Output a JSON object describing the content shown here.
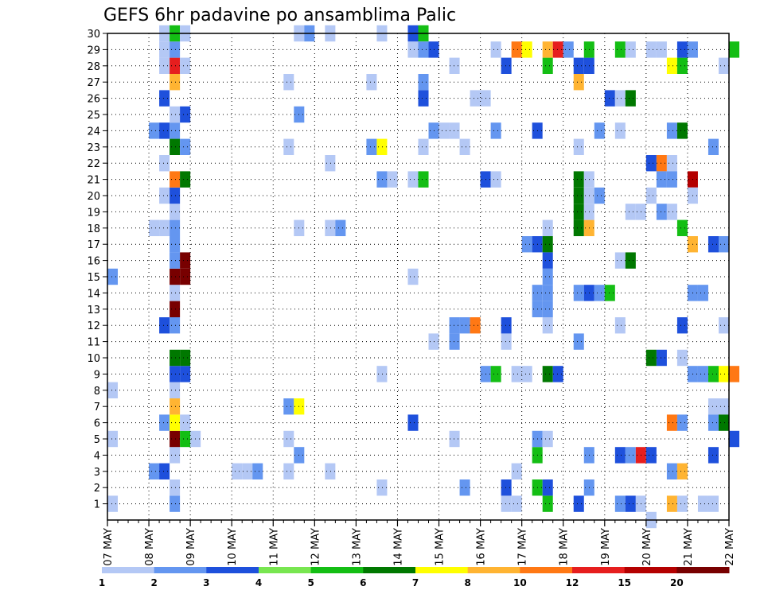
{
  "chart_data": {
    "type": "heatmap",
    "title": "GEFS 6hr padavine po ansamblima Palic",
    "xlabel": "",
    "ylabel": "",
    "x_ticks": [
      "07 MAY",
      "08 MAY",
      "09 MAY",
      "10 MAY",
      "11 MAY",
      "12 MAY",
      "13 MAY",
      "14 MAY",
      "15 MAY",
      "16 MAY",
      "17 MAY",
      "18 MAY",
      "19 MAY",
      "20 MAY",
      "21 MAY",
      "22 MAY"
    ],
    "xlim": [
      "07 MAY",
      "22 MAY"
    ],
    "time_step_hours": 6,
    "y_ticks": [
      1,
      2,
      3,
      4,
      5,
      6,
      7,
      8,
      9,
      10,
      11,
      12,
      13,
      14,
      15,
      16,
      17,
      18,
      19,
      20,
      21,
      22,
      23,
      24,
      25,
      26,
      27,
      28,
      29,
      30
    ],
    "ylim": [
      0,
      30
    ],
    "grid": true,
    "legend": {
      "placement": "bottom",
      "labels": [
        "1",
        "2",
        "3",
        "4",
        "5",
        "6",
        "7",
        "8",
        "10",
        "12",
        "15",
        "20"
      ],
      "colors": [
        "#b4c8f5",
        "#6496f0",
        "#1e50dc",
        "#78e650",
        "#14be14",
        "#007800",
        "#ffff00",
        "#ffb432",
        "#ff7814",
        "#e61e1e",
        "#b40000",
        "#780000"
      ]
    },
    "points": [
      {
        "x": "07 MAY 00",
        "y": 1,
        "v": 1
      },
      {
        "x": "07 MAY 00",
        "y": 5,
        "v": 1
      },
      {
        "x": "07 MAY 00",
        "y": 15,
        "v": 2
      },
      {
        "x": "07 MAY 00",
        "y": 8,
        "v": 1
      },
      {
        "x": "08 MAY 00",
        "y": 3,
        "v": 2
      },
      {
        "x": "08 MAY 06",
        "y": 3,
        "v": 3
      },
      {
        "x": "08 MAY 00",
        "y": 18,
        "v": 1
      },
      {
        "x": "08 MAY 06",
        "y": 18,
        "v": 1
      },
      {
        "x": "08 MAY 00",
        "y": 24,
        "v": 2
      },
      {
        "x": "08 MAY 06",
        "y": 24,
        "v": 3
      },
      {
        "x": "08 MAY 12",
        "y": 24,
        "v": 2
      },
      {
        "x": "08 MAY 06",
        "y": 26,
        "v": 3
      },
      {
        "x": "08 MAY 06",
        "y": 12,
        "v": 3
      },
      {
        "x": "08 MAY 06",
        "y": 6,
        "v": 2
      },
      {
        "x": "08 MAY 06",
        "y": 20,
        "v": 1
      },
      {
        "x": "08 MAY 06",
        "y": 22,
        "v": 1
      },
      {
        "x": "08 MAY 06",
        "y": 28,
        "v": 1
      },
      {
        "x": "08 MAY 06",
        "y": 29,
        "v": 1
      },
      {
        "x": "08 MAY 06",
        "y": 30,
        "v": 1
      },
      {
        "x": "08 MAY 12",
        "y": 1,
        "v": 2
      },
      {
        "x": "08 MAY 12",
        "y": 2,
        "v": 1
      },
      {
        "x": "08 MAY 12",
        "y": 4,
        "v": 1
      },
      {
        "x": "08 MAY 12",
        "y": 5,
        "v": 20
      },
      {
        "x": "08 MAY 12",
        "y": 6,
        "v": 7
      },
      {
        "x": "08 MAY 12",
        "y": 7,
        "v": 8
      },
      {
        "x": "08 MAY 12",
        "y": 8,
        "v": 1
      },
      {
        "x": "08 MAY 12",
        "y": 9,
        "v": 3
      },
      {
        "x": "08 MAY 12",
        "y": 10,
        "v": 6
      },
      {
        "x": "08 MAY 12",
        "y": 12,
        "v": 2
      },
      {
        "x": "08 MAY 12",
        "y": 13,
        "v": 20
      },
      {
        "x": "08 MAY 12",
        "y": 14,
        "v": 1
      },
      {
        "x": "08 MAY 12",
        "y": 15,
        "v": 20
      },
      {
        "x": "08 MAY 12",
        "y": 16,
        "v": 2
      },
      {
        "x": "08 MAY 12",
        "y": 17,
        "v": 2
      },
      {
        "x": "08 MAY 12",
        "y": 18,
        "v": 2
      },
      {
        "x": "08 MAY 12",
        "y": 19,
        "v": 1
      },
      {
        "x": "08 MAY 12",
        "y": 20,
        "v": 3
      },
      {
        "x": "08 MAY 12",
        "y": 21,
        "v": 10
      },
      {
        "x": "08 MAY 12",
        "y": 23,
        "v": 6
      },
      {
        "x": "08 MAY 12",
        "y": 25,
        "v": 1
      },
      {
        "x": "08 MAY 12",
        "y": 27,
        "v": 8
      },
      {
        "x": "08 MAY 12",
        "y": 28,
        "v": 12
      },
      {
        "x": "08 MAY 12",
        "y": 29,
        "v": 2
      },
      {
        "x": "08 MAY 12",
        "y": 30,
        "v": 5
      },
      {
        "x": "08 MAY 18",
        "y": 5,
        "v": 5
      },
      {
        "x": "08 MAY 18",
        "y": 6,
        "v": 1
      },
      {
        "x": "08 MAY 18",
        "y": 9,
        "v": 3
      },
      {
        "x": "08 MAY 18",
        "y": 10,
        "v": 6
      },
      {
        "x": "08 MAY 18",
        "y": 15,
        "v": 20
      },
      {
        "x": "08 MAY 18",
        "y": 16,
        "v": 20
      },
      {
        "x": "08 MAY 18",
        "y": 21,
        "v": 6
      },
      {
        "x": "08 MAY 18",
        "y": 23,
        "v": 2
      },
      {
        "x": "08 MAY 18",
        "y": 25,
        "v": 3
      },
      {
        "x": "08 MAY 18",
        "y": 28,
        "v": 1
      },
      {
        "x": "08 MAY 18",
        "y": 30,
        "v": 1
      },
      {
        "x": "09 MAY 00",
        "y": 5,
        "v": 1
      },
      {
        "x": "10 MAY 00",
        "y": 3,
        "v": 1
      },
      {
        "x": "10 MAY 06",
        "y": 3,
        "v": 1
      },
      {
        "x": "10 MAY 12",
        "y": 3,
        "v": 2
      },
      {
        "x": "11 MAY 06",
        "y": 3,
        "v": 1
      },
      {
        "x": "11 MAY 06",
        "y": 5,
        "v": 1
      },
      {
        "x": "11 MAY 06",
        "y": 7,
        "v": 2
      },
      {
        "x": "11 MAY 06",
        "y": 23,
        "v": 1
      },
      {
        "x": "11 MAY 06",
        "y": 27,
        "v": 1
      },
      {
        "x": "11 MAY 12",
        "y": 4,
        "v": 2
      },
      {
        "x": "11 MAY 12",
        "y": 7,
        "v": 7
      },
      {
        "x": "11 MAY 12",
        "y": 18,
        "v": 1
      },
      {
        "x": "11 MAY 12",
        "y": 25,
        "v": 2
      },
      {
        "x": "11 MAY 12",
        "y": 30,
        "v": 1
      },
      {
        "x": "11 MAY 18",
        "y": 30,
        "v": 2
      },
      {
        "x": "12 MAY 06",
        "y": 3,
        "v": 1
      },
      {
        "x": "12 MAY 06",
        "y": 18,
        "v": 1
      },
      {
        "x": "12 MAY 12",
        "y": 18,
        "v": 2
      },
      {
        "x": "12 MAY 06",
        "y": 22,
        "v": 1
      },
      {
        "x": "12 MAY 06",
        "y": 30,
        "v": 1
      },
      {
        "x": "13 MAY 06",
        "y": 27,
        "v": 1
      },
      {
        "x": "13 MAY 06",
        "y": 23,
        "v": 2
      },
      {
        "x": "13 MAY 12",
        "y": 23,
        "v": 7
      },
      {
        "x": "13 MAY 12",
        "y": 2,
        "v": 1
      },
      {
        "x": "13 MAY 12",
        "y": 9,
        "v": 1
      },
      {
        "x": "13 MAY 12",
        "y": 21,
        "v": 2
      },
      {
        "x": "13 MAY 18",
        "y": 21,
        "v": 1
      },
      {
        "x": "13 MAY 12",
        "y": 30,
        "v": 1
      },
      {
        "x": "14 MAY 06",
        "y": 6,
        "v": 3
      },
      {
        "x": "14 MAY 06",
        "y": 15,
        "v": 1
      },
      {
        "x": "14 MAY 06",
        "y": 21,
        "v": 1
      },
      {
        "x": "14 MAY 12",
        "y": 21,
        "v": 5
      },
      {
        "x": "14 MAY 06",
        "y": 29,
        "v": 1
      },
      {
        "x": "14 MAY 06",
        "y": 30,
        "v": 3
      },
      {
        "x": "14 MAY 12",
        "y": 30,
        "v": 5
      },
      {
        "x": "14 MAY 12",
        "y": 23,
        "v": 1
      },
      {
        "x": "14 MAY 12",
        "y": 26,
        "v": 3
      },
      {
        "x": "14 MAY 12",
        "y": 27,
        "v": 2
      },
      {
        "x": "14 MAY 12",
        "y": 29,
        "v": 2
      },
      {
        "x": "14 MAY 18",
        "y": 29,
        "v": 3
      },
      {
        "x": "14 MAY 18",
        "y": 11,
        "v": 1
      },
      {
        "x": "14 MAY 18",
        "y": 24,
        "v": 2
      },
      {
        "x": "15 MAY 00",
        "y": 24,
        "v": 1
      },
      {
        "x": "15 MAY 06",
        "y": 24,
        "v": 1
      },
      {
        "x": "15 MAY 06",
        "y": 5,
        "v": 1
      },
      {
        "x": "15 MAY 06",
        "y": 11,
        "v": 2
      },
      {
        "x": "15 MAY 06",
        "y": 12,
        "v": 2
      },
      {
        "x": "15 MAY 06",
        "y": 28,
        "v": 1
      },
      {
        "x": "15 MAY 12",
        "y": 2,
        "v": 2
      },
      {
        "x": "15 MAY 12",
        "y": 12,
        "v": 2
      },
      {
        "x": "15 MAY 12",
        "y": 23,
        "v": 1
      },
      {
        "x": "15 MAY 18",
        "y": 12,
        "v": 10
      },
      {
        "x": "15 MAY 18",
        "y": 26,
        "v": 1
      },
      {
        "x": "16 MAY 00",
        "y": 26,
        "v": 1
      },
      {
        "x": "16 MAY 00",
        "y": 9,
        "v": 2
      },
      {
        "x": "16 MAY 06",
        "y": 9,
        "v": 5
      },
      {
        "x": "16 MAY 00",
        "y": 21,
        "v": 3
      },
      {
        "x": "16 MAY 06",
        "y": 21,
        "v": 1
      },
      {
        "x": "16 MAY 06",
        "y": 24,
        "v": 2
      },
      {
        "x": "16 MAY 06",
        "y": 29,
        "v": 1
      },
      {
        "x": "16 MAY 12",
        "y": 1,
        "v": 0
      },
      {
        "x": "16 MAY 12",
        "y": 2,
        "v": 3
      },
      {
        "x": "16 MAY 12",
        "y": 11,
        "v": 1
      },
      {
        "x": "16 MAY 12",
        "y": 12,
        "v": 3
      },
      {
        "x": "16 MAY 12",
        "y": 28,
        "v": 3
      },
      {
        "x": "16 MAY 18",
        "y": 29,
        "v": 10
      },
      {
        "x": "17 MAY 00",
        "y": 29,
        "v": 7
      },
      {
        "x": "16 MAY 18",
        "y": 1,
        "v": 1
      },
      {
        "x": "16 MAY 18",
        "y": 3,
        "v": 1
      },
      {
        "x": "16 MAY 18",
        "y": 9,
        "v": 1
      },
      {
        "x": "17 MAY 00",
        "y": 9,
        "v": 1
      },
      {
        "x": "17 MAY 00",
        "y": 17,
        "v": 2
      },
      {
        "x": "17 MAY 06",
        "y": 17,
        "v": 3
      },
      {
        "x": "17 MAY 12",
        "y": 17,
        "v": 6
      },
      {
        "x": "17 MAY 06",
        "y": 2,
        "v": 5
      },
      {
        "x": "17 MAY 06",
        "y": 4,
        "v": 5
      },
      {
        "x": "17 MAY 06",
        "y": 5,
        "v": 2
      },
      {
        "x": "17 MAY 06",
        "y": 13,
        "v": 2
      },
      {
        "x": "17 MAY 06",
        "y": 14,
        "v": 2
      },
      {
        "x": "17 MAY 12",
        "y": 13,
        "v": 2
      },
      {
        "x": "17 MAY 12",
        "y": 14,
        "v": 2
      },
      {
        "x": "17 MAY 06",
        "y": 24,
        "v": 3
      },
      {
        "x": "17 MAY 12",
        "y": 1,
        "v": 5
      },
      {
        "x": "17 MAY 12",
        "y": 2,
        "v": 3
      },
      {
        "x": "17 MAY 12",
        "y": 5,
        "v": 1
      },
      {
        "x": "17 MAY 12",
        "y": 9,
        "v": 6
      },
      {
        "x": "17 MAY 12",
        "y": 12,
        "v": 1
      },
      {
        "x": "17 MAY 12",
        "y": 15,
        "v": 2
      },
      {
        "x": "17 MAY 12",
        "y": 16,
        "v": 3
      },
      {
        "x": "17 MAY 12",
        "y": 18,
        "v": 1
      },
      {
        "x": "17 MAY 12",
        "y": 28,
        "v": 5
      },
      {
        "x": "17 MAY 12",
        "y": 29,
        "v": 8
      },
      {
        "x": "17 MAY 18",
        "y": 9,
        "v": 3
      },
      {
        "x": "17 MAY 18",
        "y": 29,
        "v": 12
      },
      {
        "x": "18 MAY 00",
        "y": 29,
        "v": 2
      },
      {
        "x": "18 MAY 06",
        "y": 1,
        "v": 3
      },
      {
        "x": "18 MAY 06",
        "y": 11,
        "v": 2
      },
      {
        "x": "18 MAY 06",
        "y": 14,
        "v": 2
      },
      {
        "x": "18 MAY 06",
        "y": 18,
        "v": 6
      },
      {
        "x": "18 MAY 06",
        "y": 19,
        "v": 6
      },
      {
        "x": "18 MAY 06",
        "y": 20,
        "v": 6
      },
      {
        "x": "18 MAY 06",
        "y": 21,
        "v": 6
      },
      {
        "x": "18 MAY 06",
        "y": 23,
        "v": 1
      },
      {
        "x": "18 MAY 06",
        "y": 27,
        "v": 8
      },
      {
        "x": "18 MAY 06",
        "y": 28,
        "v": 3
      },
      {
        "x": "18 MAY 12",
        "y": 28,
        "v": 3
      },
      {
        "x": "18 MAY 12",
        "y": 2,
        "v": 2
      },
      {
        "x": "18 MAY 12",
        "y": 4,
        "v": 2
      },
      {
        "x": "18 MAY 12",
        "y": 14,
        "v": 3
      },
      {
        "x": "18 MAY 12",
        "y": 18,
        "v": 8
      },
      {
        "x": "18 MAY 12",
        "y": 19,
        "v": 1
      },
      {
        "x": "18 MAY 12",
        "y": 20,
        "v": 1
      },
      {
        "x": "18 MAY 12",
        "y": 21,
        "v": 1
      },
      {
        "x": "18 MAY 12",
        "y": 29,
        "v": 5
      },
      {
        "x": "18 MAY 18",
        "y": 14,
        "v": 2
      },
      {
        "x": "18 MAY 18",
        "y": 20,
        "v": 2
      },
      {
        "x": "18 MAY 18",
        "y": 24,
        "v": 2
      },
      {
        "x": "19 MAY 00",
        "y": 14,
        "v": 5
      },
      {
        "x": "19 MAY 00",
        "y": 26,
        "v": 3
      },
      {
        "x": "19 MAY 06",
        "y": 26,
        "v": 1
      },
      {
        "x": "19 MAY 12",
        "y": 26,
        "v": 6
      },
      {
        "x": "19 MAY 06",
        "y": 1,
        "v": 2
      },
      {
        "x": "19 MAY 06",
        "y": 4,
        "v": 3
      },
      {
        "x": "19 MAY 06",
        "y": 12,
        "v": 1
      },
      {
        "x": "19 MAY 06",
        "y": 16,
        "v": 1
      },
      {
        "x": "19 MAY 12",
        "y": 16,
        "v": 6
      },
      {
        "x": "19 MAY 06",
        "y": 24,
        "v": 1
      },
      {
        "x": "19 MAY 06",
        "y": 29,
        "v": 5
      },
      {
        "x": "19 MAY 12",
        "y": 29,
        "v": 1
      },
      {
        "x": "19 MAY 12",
        "y": 1,
        "v": 3
      },
      {
        "x": "19 MAY 12",
        "y": 4,
        "v": 2
      },
      {
        "x": "19 MAY 12",
        "y": 19,
        "v": 1
      },
      {
        "x": "19 MAY 18",
        "y": 19,
        "v": 1
      },
      {
        "x": "19 MAY 18",
        "y": 1,
        "v": 1
      },
      {
        "x": "19 MAY 18",
        "y": 4,
        "v": 12
      },
      {
        "x": "20 MAY 00",
        "y": 4,
        "v": 3
      },
      {
        "x": "20 MAY 00",
        "y": 0,
        "v": 1
      },
      {
        "x": "20 MAY 00",
        "y": 10,
        "v": 6
      },
      {
        "x": "20 MAY 00",
        "y": 20,
        "v": 1
      },
      {
        "x": "20 MAY 00",
        "y": 22,
        "v": 3
      },
      {
        "x": "20 MAY 06",
        "y": 22,
        "v": 10
      },
      {
        "x": "20 MAY 12",
        "y": 22,
        "v": 1
      },
      {
        "x": "20 MAY 00",
        "y": 29,
        "v": 1
      },
      {
        "x": "20 MAY 06",
        "y": 29,
        "v": 1
      },
      {
        "x": "20 MAY 06",
        "y": 10,
        "v": 3
      },
      {
        "x": "20 MAY 06",
        "y": 19,
        "v": 2
      },
      {
        "x": "20 MAY 06",
        "y": 21,
        "v": 2
      },
      {
        "x": "20 MAY 12",
        "y": 21,
        "v": 2
      },
      {
        "x": "20 MAY 12",
        "y": 19,
        "v": 1
      },
      {
        "x": "20 MAY 12",
        "y": 1,
        "v": 8
      },
      {
        "x": "20 MAY 12",
        "y": 3,
        "v": 2
      },
      {
        "x": "20 MAY 12",
        "y": 6,
        "v": 10
      },
      {
        "x": "20 MAY 12",
        "y": 24,
        "v": 2
      },
      {
        "x": "20 MAY 12",
        "y": 28,
        "v": 7
      },
      {
        "x": "20 MAY 18",
        "y": 28,
        "v": 5
      },
      {
        "x": "20 MAY 18",
        "y": 24,
        "v": 6
      },
      {
        "x": "20 MAY 18",
        "y": 18,
        "v": 5
      },
      {
        "x": "20 MAY 18",
        "y": 1,
        "v": 1
      },
      {
        "x": "20 MAY 18",
        "y": 3,
        "v": 8
      },
      {
        "x": "20 MAY 18",
        "y": 6,
        "v": 2
      },
      {
        "x": "20 MAY 18",
        "y": 10,
        "v": 1
      },
      {
        "x": "20 MAY 18",
        "y": 12,
        "v": 3
      },
      {
        "x": "20 MAY 18",
        "y": 29,
        "v": 3
      },
      {
        "x": "21 MAY 00",
        "y": 29,
        "v": 2
      },
      {
        "x": "21 MAY 00",
        "y": 21,
        "v": 15
      },
      {
        "x": "21 MAY 00",
        "y": 20,
        "v": 1
      },
      {
        "x": "21 MAY 00",
        "y": 17,
        "v": 8
      },
      {
        "x": "21 MAY 00",
        "y": 14,
        "v": 2
      },
      {
        "x": "21 MAY 00",
        "y": 9,
        "v": 2
      },
      {
        "x": "21 MAY 06",
        "y": 9,
        "v": 2
      },
      {
        "x": "21 MAY 06",
        "y": 14,
        "v": 2
      },
      {
        "x": "21 MAY 06",
        "y": 1,
        "v": 1
      },
      {
        "x": "21 MAY 12",
        "y": 1,
        "v": 1
      },
      {
        "x": "21 MAY 12",
        "y": 4,
        "v": 3
      },
      {
        "x": "21 MAY 12",
        "y": 7,
        "v": 1
      },
      {
        "x": "21 MAY 18",
        "y": 7,
        "v": 1
      },
      {
        "x": "21 MAY 12",
        "y": 6,
        "v": 2
      },
      {
        "x": "21 MAY 18",
        "y": 6,
        "v": 6
      },
      {
        "x": "21 MAY 12",
        "y": 9,
        "v": 5
      },
      {
        "x": "21 MAY 18",
        "y": 9,
        "v": 7
      },
      {
        "x": "22 MAY 00",
        "y": 9,
        "v": 10
      },
      {
        "x": "21 MAY 12",
        "y": 17,
        "v": 3
      },
      {
        "x": "21 MAY 18",
        "y": 17,
        "v": 2
      },
      {
        "x": "21 MAY 12",
        "y": 23,
        "v": 2
      },
      {
        "x": "21 MAY 18",
        "y": 12,
        "v": 1
      },
      {
        "x": "21 MAY 18",
        "y": 28,
        "v": 1
      },
      {
        "x": "22 MAY 00",
        "y": 29,
        "v": 5
      },
      {
        "x": "22 MAY 00",
        "y": 5,
        "v": 3
      }
    ]
  }
}
